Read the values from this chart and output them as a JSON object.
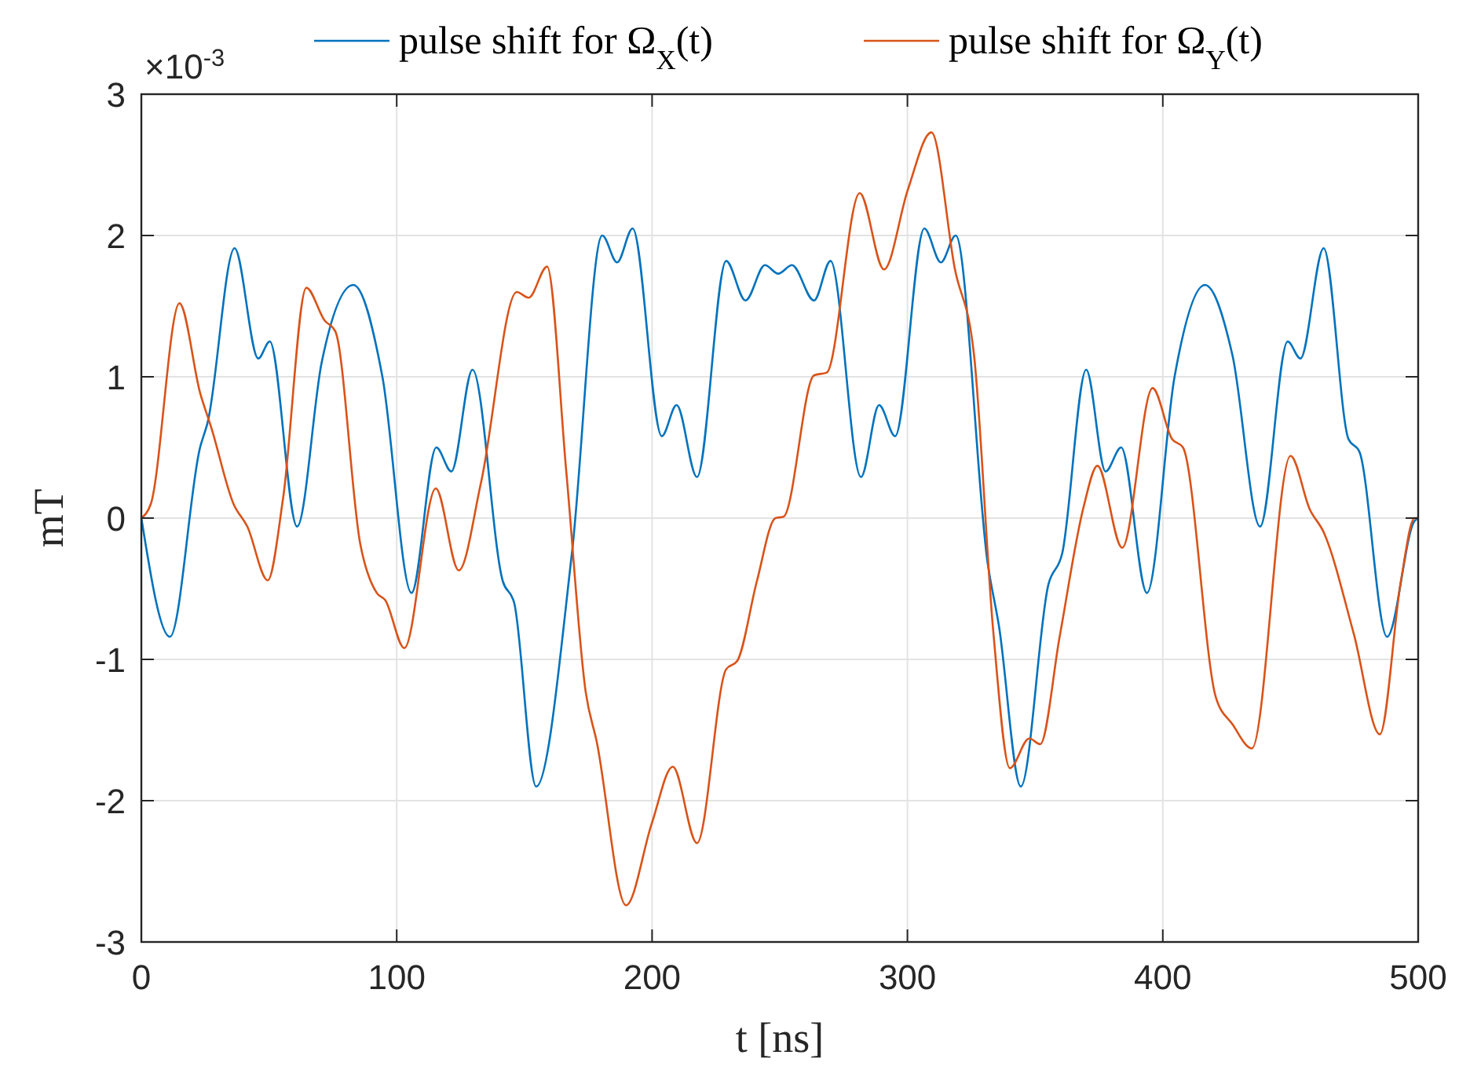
{
  "chart_data": {
    "type": "line",
    "xlabel": "t [ns]",
    "ylabel": "mT",
    "annotations": [
      "×10$^{-3}$"
    ],
    "xlim": [
      0,
      500
    ],
    "xticks": [
      0,
      100,
      200,
      300,
      400,
      500
    ],
    "ylim": [
      -3,
      3
    ],
    "yticks": [
      -3,
      -2,
      -1,
      0,
      1,
      2,
      3
    ],
    "grid": true,
    "legend": "top",
    "marker": "none",
    "line_style": "solid",
    "series": [
      {
        "name": "pulse shift for Ω$_{X}$(t)",
        "color": "#0072bd",
        "x": [
          0,
          11.2,
          23,
          26,
          36.5,
          45.8,
          50.3,
          61,
          70.6,
          83,
          94.4,
          105.8,
          115.5,
          121.4,
          129.7,
          141.6,
          146,
          154.6,
          168.6,
          180.5,
          186.3,
          192.4,
          203.8,
          209.6,
          217.6,
          229,
          236.6,
          244.2,
          249.4,
          254.8,
          263.4,
          269.9,
          281.8,
          288.9,
          295.2,
          306.6,
          313.1,
          318.9,
          331.5,
          335.8,
          344.4,
          355.2,
          360.6,
          370,
          377.6,
          383.7,
          393.8,
          404.6,
          416.5,
          427.3,
          438.1,
          448.9,
          453.9,
          463,
          472.7,
          477,
          487.8,
          498.6,
          500
        ],
        "values": [
          0,
          -0.84,
          0.5,
          0.68,
          1.91,
          1.13,
          1.25,
          -0.06,
          1.1,
          1.65,
          1.0,
          -0.53,
          0.5,
          0.33,
          1.05,
          -0.45,
          -0.6,
          -1.9,
          -0.25,
          2.0,
          1.81,
          2.05,
          0.58,
          0.8,
          0.29,
          1.82,
          1.54,
          1.79,
          1.73,
          1.79,
          1.54,
          1.82,
          0.29,
          0.8,
          0.58,
          2.05,
          1.81,
          2.0,
          -0.33,
          -0.76,
          -1.9,
          -0.47,
          -0.25,
          1.05,
          0.33,
          0.5,
          -0.53,
          1.0,
          1.65,
          1.15,
          -0.06,
          1.25,
          1.13,
          1.91,
          0.56,
          0.47,
          -0.84,
          -0.02,
          0
        ]
      },
      {
        "name": "pulse shift for Ω$_{Y}$(t)",
        "color": "#d95319",
        "x": [
          0,
          3.7,
          14.9,
          23.1,
          27.4,
          36.1,
          41.5,
          49.5,
          55.5,
          64.6,
          71.7,
          76,
          85.7,
          92.2,
          95.5,
          103,
          115.3,
          124.3,
          133,
          147,
          151.7,
          158.9,
          166.4,
          174,
          178.3,
          189.8,
          199.9,
          208.1,
          217.6,
          229,
          233.4,
          241,
          248.3,
          251.5,
          263.4,
          268.4,
          281.3,
          290.8,
          300.1,
          309.4,
          318.5,
          326.1,
          333.6,
          340.1,
          347.7,
          352,
          359.6,
          369,
          374.4,
          384.1,
          396,
          403.6,
          407.9,
          420.8,
          427.3,
          434.9,
          450,
          457.6,
          463,
          474.8,
          485,
          493.2,
          498.6,
          500
        ],
        "values": [
          0,
          0.1,
          1.52,
          0.88,
          0.64,
          0.1,
          -0.06,
          -0.44,
          0.14,
          1.63,
          1.4,
          1.32,
          -0.18,
          -0.53,
          -0.58,
          -0.92,
          0.21,
          -0.37,
          0.25,
          1.6,
          1.56,
          1.78,
          0.33,
          -1.23,
          -1.58,
          -2.74,
          -2.16,
          -1.76,
          -2.3,
          -1.07,
          -1.01,
          -0.45,
          0,
          0.01,
          1.01,
          1.03,
          2.3,
          1.76,
          2.32,
          2.73,
          1.77,
          1.15,
          -0.8,
          -1.77,
          -1.56,
          -1.6,
          -0.84,
          0.08,
          0.37,
          -0.21,
          0.92,
          0.56,
          0.5,
          -1.27,
          -1.46,
          -1.63,
          0.44,
          0.06,
          -0.1,
          -0.82,
          -1.53,
          -0.45,
          0,
          0
        ]
      }
    ]
  }
}
